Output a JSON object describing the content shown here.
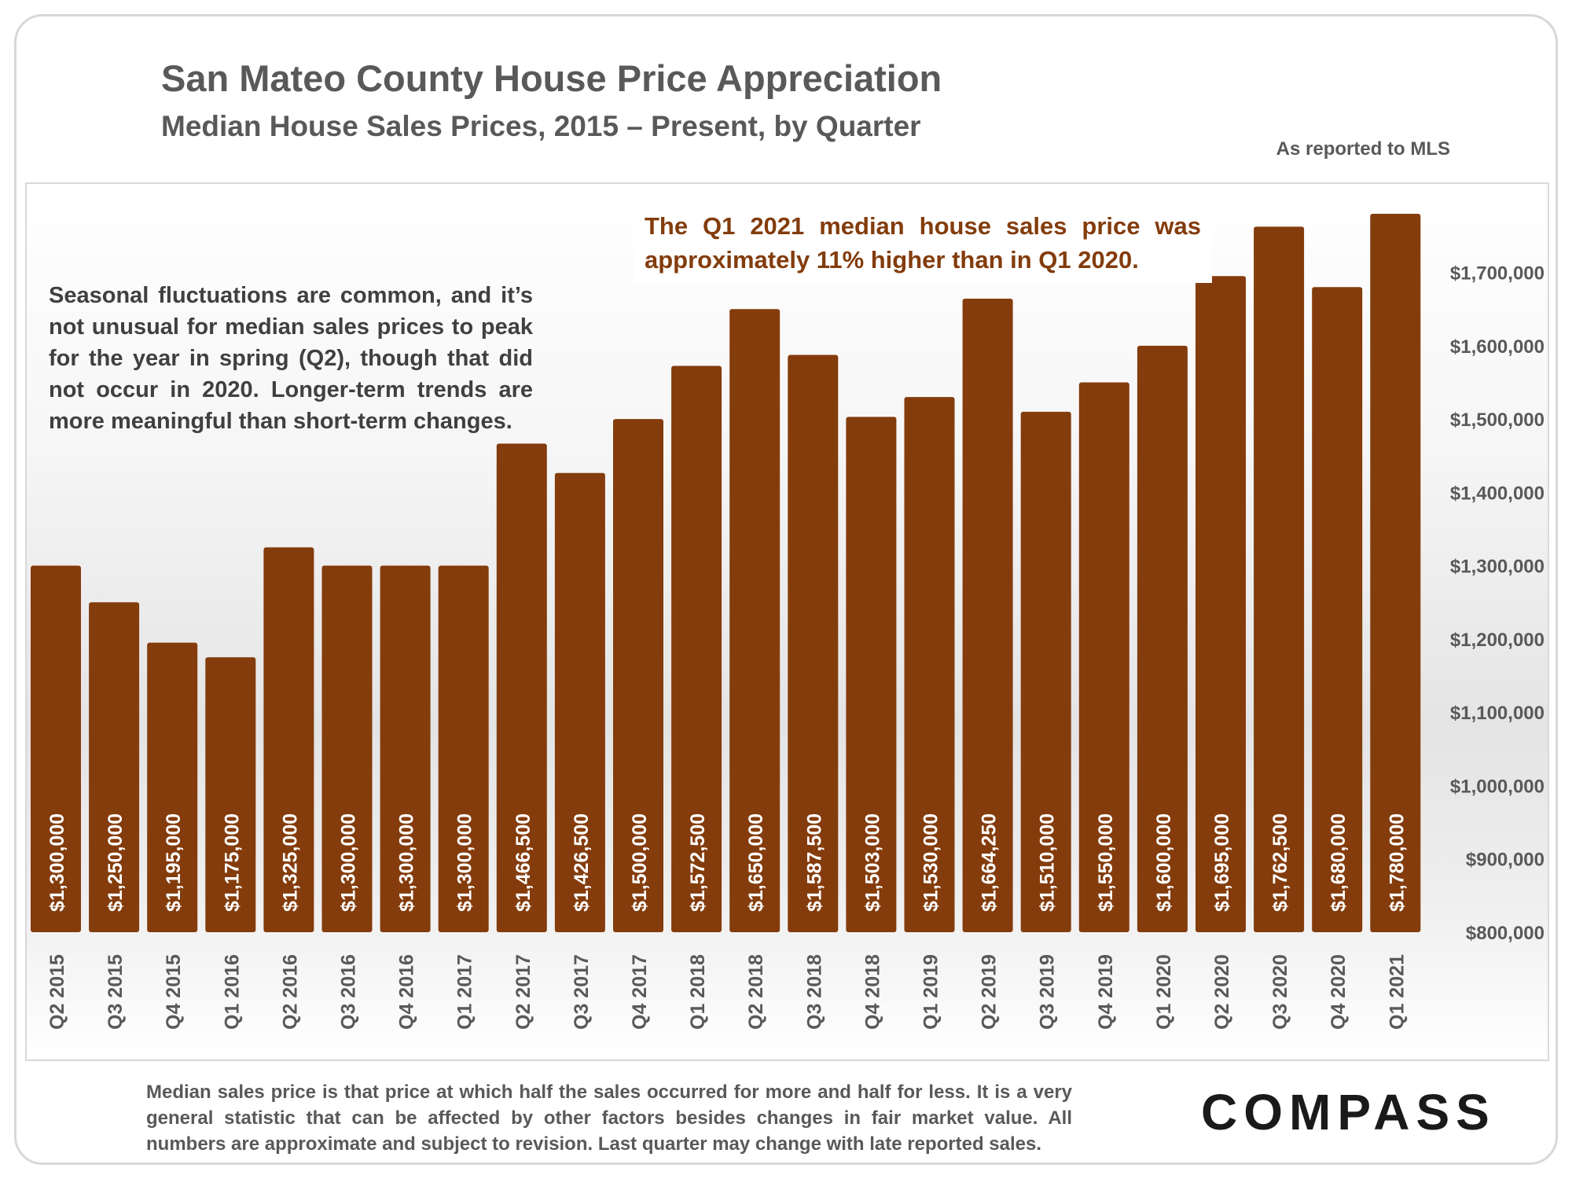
{
  "header": {
    "title": "San Mateo County House Price Appreciation",
    "subtitle": "Median House Sales Prices, 2015 – Present, by Quarter",
    "source_note": "As reported to MLS"
  },
  "notes": {
    "seasonal": "Seasonal fluctuations are common, and it’s not unusual for median sales prices to peak for the year in spring (Q2), though that did not occur in 2020. Longer-term trends are more meaningful than short-term changes.",
    "callout": "The Q1 2021 median house sales price was approximately 11% higher than in Q1 2020.",
    "footnote": "Median sales price is that price at which half the sales occurred for more and half for less. It is a very general statistic that can be affected by other factors besides changes in fair market value. All numbers are approximate and subject to revision. Last quarter may change with late reported sales."
  },
  "logo": "COMPASS",
  "colors": {
    "bar": "#843c0c",
    "text": "#595959",
    "callout": "#833c0c"
  },
  "chart_data": {
    "type": "bar",
    "title": "San Mateo County House Price Appreciation",
    "subtitle": "Median House Sales Prices, 2015 – Present, by Quarter",
    "categories": [
      "Q2 2015",
      "Q3 2015",
      "Q4 2015",
      "Q1 2016",
      "Q2 2016",
      "Q3 2016",
      "Q4 2016",
      "Q1 2017",
      "Q2 2017",
      "Q3 2017",
      "Q4 2017",
      "Q1 2018",
      "Q2 2018",
      "Q3 2018",
      "Q4 2018",
      "Q1 2019",
      "Q2 2019",
      "Q3 2019",
      "Q4 2019",
      "Q1 2020",
      "Q2 2020",
      "Q3 2020",
      "Q4 2020",
      "Q1 2021"
    ],
    "values": [
      1300000,
      1250000,
      1195000,
      1175000,
      1325000,
      1300000,
      1300000,
      1300000,
      1466500,
      1426500,
      1500000,
      1572500,
      1650000,
      1587500,
      1503000,
      1530000,
      1664250,
      1510000,
      1550000,
      1600000,
      1695000,
      1762500,
      1680000,
      1780000
    ],
    "value_labels": [
      "$1,300,000",
      "$1,250,000",
      "$1,195,000",
      "$1,175,000",
      "$1,325,000",
      "$1,300,000",
      "$1,300,000",
      "$1,300,000",
      "$1,466,500",
      "$1,426,500",
      "$1,500,000",
      "$1,572,500",
      "$1,650,000",
      "$1,587,500",
      "$1,503,000",
      "$1,530,000",
      "$1,664,250",
      "$1,510,000",
      "$1,550,000",
      "$1,600,000",
      "$1,695,000",
      "$1,762,500",
      "$1,680,000",
      "$1,780,000"
    ],
    "y_ticks": [
      800000,
      900000,
      1000000,
      1100000,
      1200000,
      1300000,
      1400000,
      1500000,
      1600000,
      1700000
    ],
    "y_tick_labels": [
      "$800,000",
      "$900,000",
      "$1,000,000",
      "$1,100,000",
      "$1,200,000",
      "$1,300,000",
      "$1,400,000",
      "$1,500,000",
      "$1,600,000",
      "$1,700,000"
    ],
    "ylim": [
      800000,
      1780000
    ],
    "y_axis_side": "right",
    "grid": false,
    "legend": "none",
    "xlabel": "",
    "ylabel": ""
  }
}
